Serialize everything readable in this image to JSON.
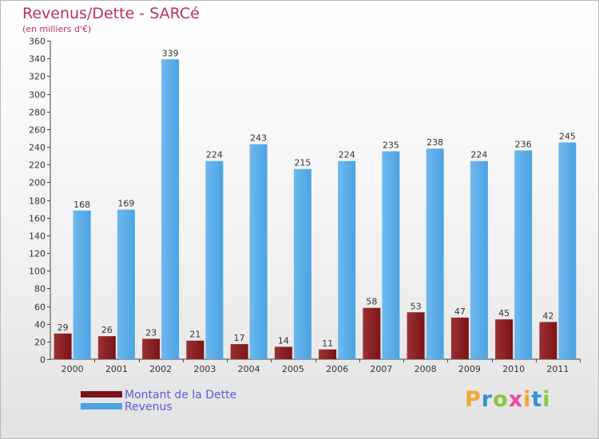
{
  "title": "Revenus/Dette - SARCé",
  "subtitle": "(en milliers d'€)",
  "legend": {
    "debt_label": "Montant de la Dette",
    "revenue_label": "Revenus"
  },
  "brand": {
    "text": "Proxiti",
    "letters": [
      {
        "ch": "P",
        "color": "#f2a531"
      },
      {
        "ch": "r",
        "color": "#2f93d4"
      },
      {
        "ch": "o",
        "color": "#8cc63f"
      },
      {
        "ch": "x",
        "color": "#e84b97"
      },
      {
        "ch": "i",
        "color": "#f2a531"
      },
      {
        "ch": "t",
        "color": "#2f93d4"
      },
      {
        "ch": "i",
        "color": "#8cc63f"
      }
    ]
  },
  "colors": {
    "debt": "#7a1417",
    "debt_light": "#9b3034",
    "revenue": "#4aa3e3",
    "revenue_light": "#6fb8ee",
    "title": "#b8325f",
    "legend_text": "#5a5ae0"
  },
  "chart_data": {
    "type": "bar",
    "title": "Revenus/Dette - SARCé",
    "ylabel": "(en milliers d'€)",
    "xlabel": "",
    "ylim": [
      0,
      360
    ],
    "ytick_step": 20,
    "grid": false,
    "legend_position": "bottom-left",
    "categories": [
      "2000",
      "2001",
      "2002",
      "2003",
      "2004",
      "2005",
      "2006",
      "2007",
      "2008",
      "2009",
      "2010",
      "2011"
    ],
    "series": [
      {
        "name": "Montant de la Dette",
        "values": [
          29,
          26,
          23,
          21,
          17,
          14,
          11,
          58,
          53,
          47,
          45,
          42
        ]
      },
      {
        "name": "Revenus",
        "values": [
          168,
          169,
          339,
          224,
          243,
          215,
          224,
          235,
          238,
          224,
          236,
          245
        ]
      }
    ]
  }
}
